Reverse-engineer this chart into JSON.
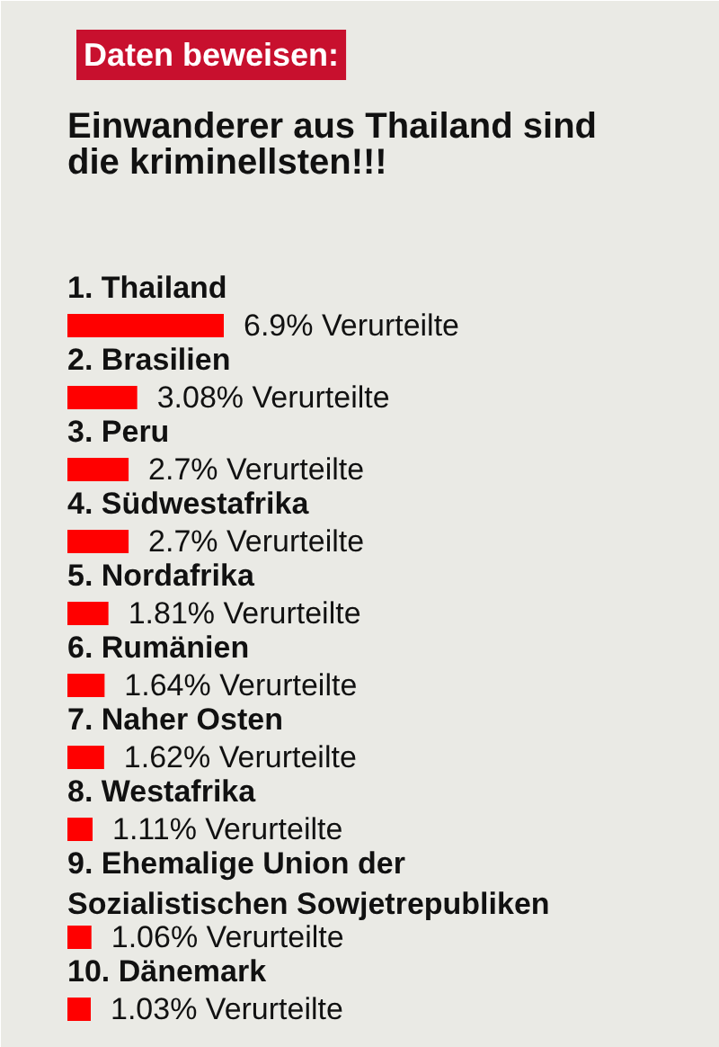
{
  "chart_data": {
    "type": "bar",
    "orientation": "horizontal",
    "title": "Daten beweisen:",
    "subtitle": "Einwanderer aus Thailand sind die kriminellsten!!!",
    "categories": [
      "1. Thailand",
      "2. Brasilien",
      "3. Peru",
      "4. Südwestafrika",
      "5. Nordafrika",
      "6. Rumänien",
      "7. Naher Osten",
      "8. Westafrika",
      "9. Ehemalige Union der Sozialistischen Sowjetrepubliken",
      "10. Dänemark"
    ],
    "values": [
      6.9,
      3.08,
      2.7,
      2.7,
      1.81,
      1.64,
      1.62,
      1.11,
      1.06,
      1.03
    ],
    "color": "#ff0000",
    "value_labels": [
      "6.9% Verurteilte",
      "3.08% Verurteilte",
      "2.7% Verurteilte",
      "2.7% Verurteilte",
      "1.81% Verurteilte",
      "1.64% Verurteilte",
      "1.62% Verurteilte",
      "1.11% Verurteilte",
      "1.06% Verurteilte",
      "1.03% Verurteilte"
    ]
  }
}
